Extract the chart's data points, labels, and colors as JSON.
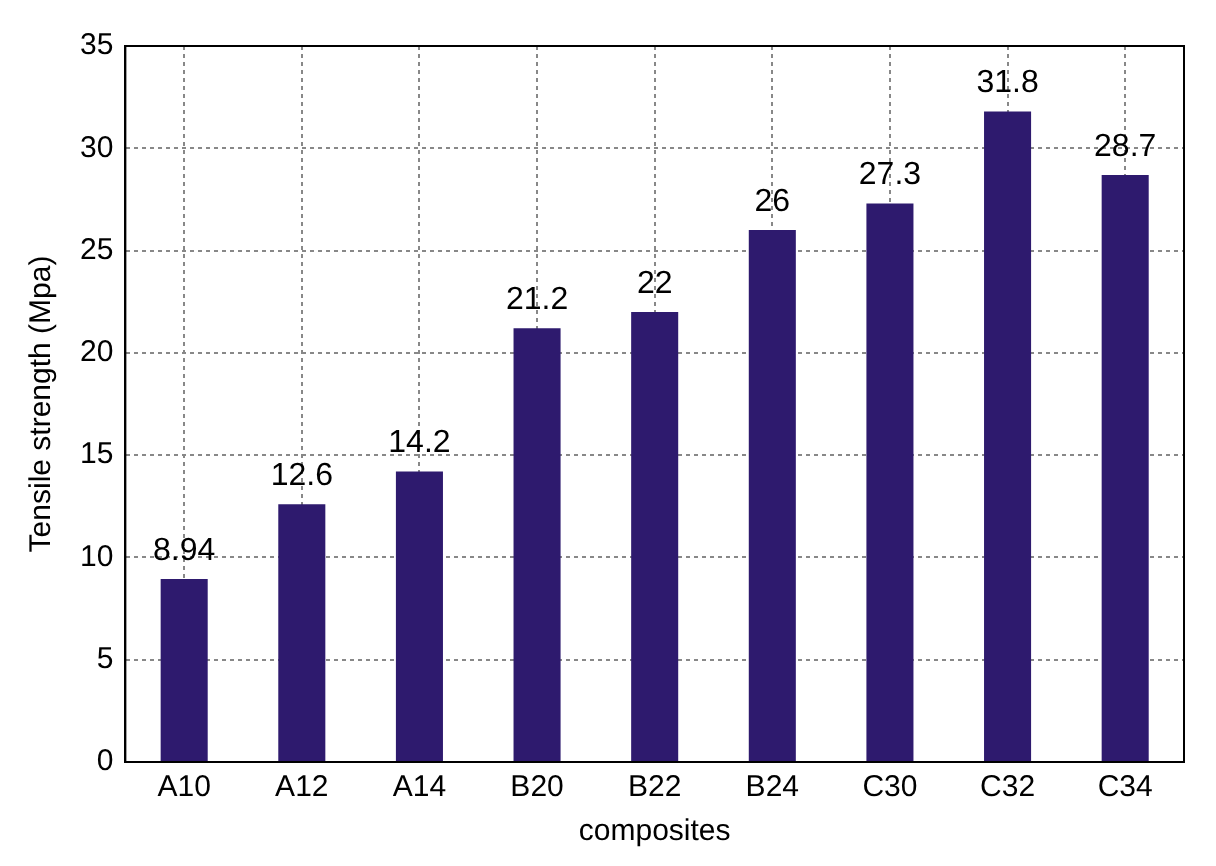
{
  "chart_data": {
    "type": "bar",
    "xlabel": "composites",
    "ylabel": "Tensile strength (Mpa)",
    "categories": [
      "A10",
      "A12",
      "A14",
      "B20",
      "B22",
      "B24",
      "C30",
      "C32",
      "C34"
    ],
    "values": [
      8.94,
      12.6,
      14.2,
      21.2,
      22,
      26,
      27.3,
      31.8,
      28.7
    ],
    "color": "#2e1a6e",
    "ylim": [
      0,
      35
    ],
    "yticks": [
      0,
      5,
      10,
      15,
      20,
      25,
      30,
      35
    ],
    "grid": true,
    "data_labels": true
  }
}
